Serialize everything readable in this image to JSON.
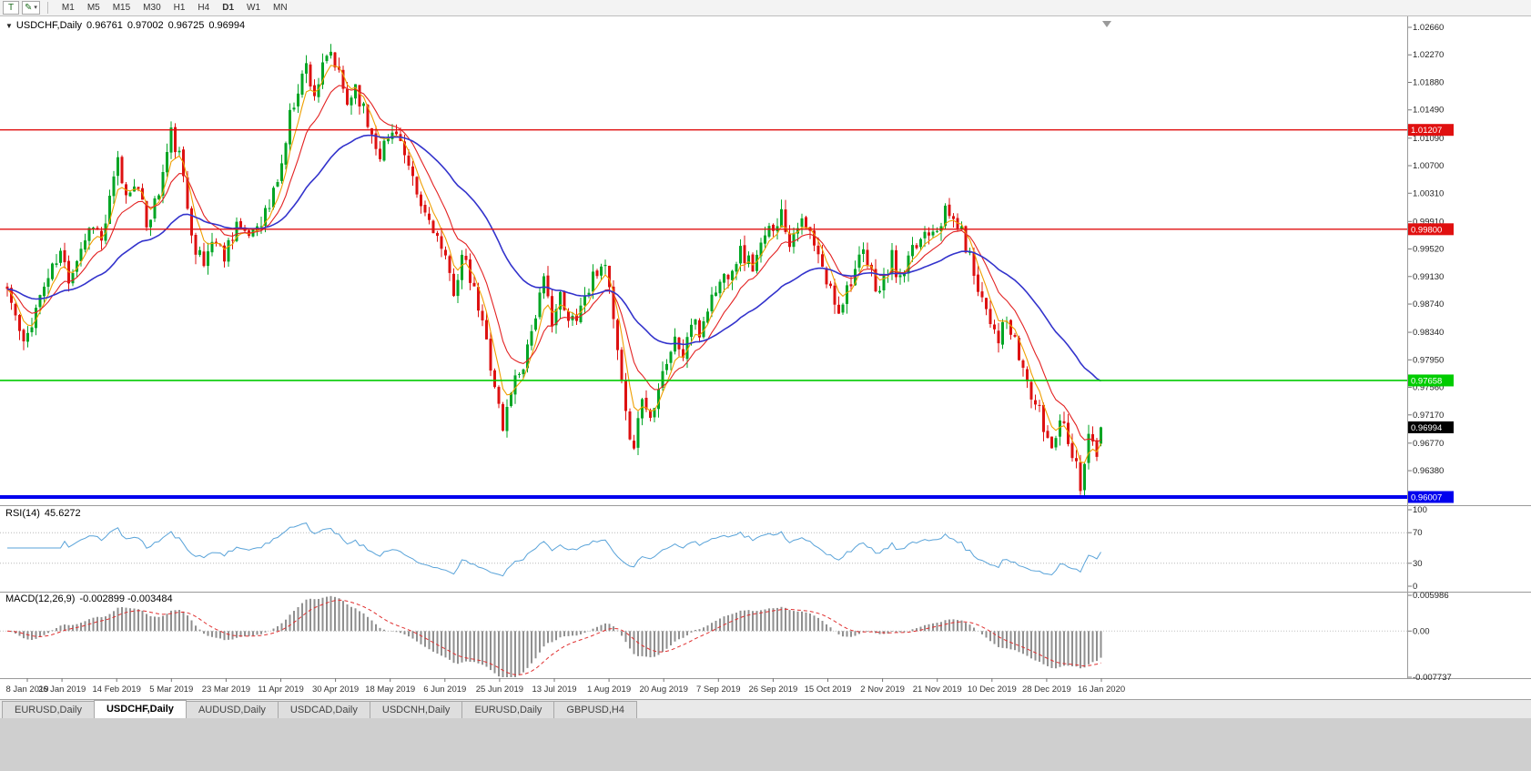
{
  "toolbar": {
    "tool_buttons": [
      {
        "label": "T"
      },
      {
        "label": "✎",
        "caret": "▾"
      }
    ],
    "timeframes": [
      "M1",
      "M5",
      "M15",
      "M30",
      "H1",
      "H4",
      "D1",
      "W1",
      "MN"
    ],
    "active_timeframe": "D1"
  },
  "chart_header": {
    "collapse_icon": "▼",
    "symbol": "USDCHF,Daily",
    "open": "0.96761",
    "high": "0.97002",
    "low": "0.96725",
    "close": "0.96994"
  },
  "indicator_labels": {
    "rsi_name": "RSI(14)",
    "rsi_value": "45.6272",
    "macd_name": "MACD(12,26,9)",
    "macd_values": "-0.002899 -0.003484"
  },
  "chart_data": {
    "type": "candlestick",
    "symbol": "USDCHF",
    "timeframe": "Daily",
    "bars": 268,
    "noise": 0.0013,
    "wick": 0.0014,
    "seed": 11,
    "price_range": {
      "top": 1.0266,
      "bottom": 0.96007
    },
    "last_bar": {
      "open": 0.96761,
      "high": 0.97002,
      "low": 0.96725,
      "close": 0.96994
    },
    "close_anchors": [
      [
        0,
        0.9895
      ],
      [
        2,
        0.9855
      ],
      [
        4,
        0.9812
      ],
      [
        6,
        0.9852
      ],
      [
        9,
        0.99
      ],
      [
        13,
        0.9945
      ],
      [
        15,
        0.9912
      ],
      [
        18,
        0.9955
      ],
      [
        21,
        0.9992
      ],
      [
        23,
        0.9962
      ],
      [
        27,
        1.0075
      ],
      [
        29,
        1.0025
      ],
      [
        31,
        1.0052
      ],
      [
        34,
        0.9988
      ],
      [
        37,
        1.0032
      ],
      [
        40,
        1.0115
      ],
      [
        42,
        1.0082
      ],
      [
        44,
        1.0012
      ],
      [
        46,
        0.9955
      ],
      [
        48,
        0.9928
      ],
      [
        50,
        0.9968
      ],
      [
        53,
        0.9945
      ],
      [
        56,
        0.9992
      ],
      [
        58,
        0.9965
      ],
      [
        61,
        0.9988
      ],
      [
        64,
        1.0012
      ],
      [
        67,
        1.0072
      ],
      [
        69,
        1.014
      ],
      [
        71,
        1.0182
      ],
      [
        73,
        1.0212
      ],
      [
        75,
        1.0172
      ],
      [
        77,
        1.0205
      ],
      [
        79,
        1.0228
      ],
      [
        81,
        1.0195
      ],
      [
        83,
        1.0158
      ],
      [
        85,
        1.0185
      ],
      [
        88,
        1.013
      ],
      [
        91,
        1.009
      ],
      [
        93,
        1.0108
      ],
      [
        95,
        1.0125
      ],
      [
        98,
        1.006
      ],
      [
        101,
        1.001
      ],
      [
        104,
        0.9985
      ],
      [
        107,
        0.993
      ],
      [
        109,
        0.9895
      ],
      [
        111,
        0.994
      ],
      [
        113,
        0.9908
      ],
      [
        115,
        0.9868
      ],
      [
        117,
        0.982
      ],
      [
        119,
        0.9762
      ],
      [
        121,
        0.9695
      ],
      [
        123,
        0.9755
      ],
      [
        126,
        0.9792
      ],
      [
        129,
        0.9862
      ],
      [
        131,
        0.9902
      ],
      [
        133,
        0.9855
      ],
      [
        135,
        0.9882
      ],
      [
        137,
        0.9845
      ],
      [
        140,
        0.9872
      ],
      [
        143,
        0.9912
      ],
      [
        145,
        0.9938
      ],
      [
        147,
        0.9895
      ],
      [
        149,
        0.98
      ],
      [
        151,
        0.971
      ],
      [
        153,
        0.9678
      ],
      [
        155,
        0.9742
      ],
      [
        157,
        0.9712
      ],
      [
        159,
        0.9765
      ],
      [
        161,
        0.9795
      ],
      [
        163,
        0.9822
      ],
      [
        165,
        0.9802
      ],
      [
        167,
        0.9848
      ],
      [
        169,
        0.9832
      ],
      [
        171,
        0.987
      ],
      [
        173,
        0.9895
      ],
      [
        176,
        0.9922
      ],
      [
        179,
        0.9948
      ],
      [
        182,
        0.9928
      ],
      [
        185,
        0.9965
      ],
      [
        187,
        0.9988
      ],
      [
        189,
        1.0002
      ],
      [
        191,
        0.9965
      ],
      [
        193,
        0.9992
      ],
      [
        196,
        0.9972
      ],
      [
        198,
        0.9938
      ],
      [
        200,
        0.9905
      ],
      [
        203,
        0.9868
      ],
      [
        206,
        0.9912
      ],
      [
        209,
        0.9942
      ],
      [
        211,
        0.9915
      ],
      [
        213,
        0.9892
      ],
      [
        216,
        0.9938
      ],
      [
        218,
        0.9905
      ],
      [
        221,
        0.9945
      ],
      [
        224,
        0.9978
      ],
      [
        227,
        0.9988
      ],
      [
        229,
        1.0002
      ],
      [
        232,
        0.9988
      ],
      [
        234,
        0.9958
      ],
      [
        236,
        0.992
      ],
      [
        238,
        0.9885
      ],
      [
        240,
        0.9855
      ],
      [
        242,
        0.9828
      ],
      [
        244,
        0.9848
      ],
      [
        246,
        0.9815
      ],
      [
        248,
        0.9782
      ],
      [
        250,
        0.9745
      ],
      [
        252,
        0.9718
      ],
      [
        253,
        0.9698
      ],
      [
        255,
        0.9672
      ],
      [
        257,
        0.9716
      ],
      [
        259,
        0.9688
      ],
      [
        261,
        0.9645
      ],
      [
        262,
        0.9618
      ],
      [
        263,
        0.9655
      ],
      [
        264,
        0.9692
      ],
      [
        265,
        0.9672
      ],
      [
        266,
        0.9655
      ],
      [
        267,
        0.9699
      ]
    ],
    "price_axis_ticks": [
      "1.02660",
      "1.02270",
      "1.01880",
      "1.01490",
      "1.01090",
      "1.00700",
      "1.00310",
      "0.99910",
      "0.99520",
      "0.99130",
      "0.98740",
      "0.98340",
      "0.97950",
      "0.97560",
      "0.97170",
      "0.96770",
      "0.96380"
    ],
    "date_labels": [
      "8 Jan 2019",
      "26 Jan 2019",
      "14 Feb 2019",
      "5 Mar 2019",
      "23 Mar 2019",
      "11 Apr 2019",
      "30 Apr 2019",
      "18 May 2019",
      "6 Jun 2019",
      "25 Jun 2019",
      "13 Jul 2019",
      "1 Aug 2019",
      "20 Aug 2019",
      "7 Sep 2019",
      "26 Sep 2019",
      "15 Oct 2019",
      "2 Nov 2019",
      "21 Nov 2019",
      "10 Dec 2019",
      "28 Dec 2019",
      "16 Jan 2020"
    ],
    "levels": [
      {
        "price": 1.01207,
        "label": "1.01207",
        "color": "#e01010",
        "width": 1.3
      },
      {
        "price": 0.998,
        "label": "0.99800",
        "color": "#e01010",
        "width": 1.3
      },
      {
        "price": 0.97658,
        "label": "0.97658",
        "color": "#00cc00",
        "width": 1.6
      },
      {
        "price": 0.96007,
        "label": "0.96007",
        "color": "#0000ee",
        "width": 4
      }
    ],
    "current_price": {
      "price": 0.96994,
      "label": "0.96994",
      "badge_color": "#000000"
    },
    "moving_averages": [
      {
        "period": 5,
        "color": "#ef9f00"
      },
      {
        "period": 12,
        "color": "#e32222"
      },
      {
        "period": 40,
        "color": "#3333cc"
      }
    ],
    "candle_colors": {
      "bull": "#00a524",
      "bear": "#dd1111"
    },
    "rsi": {
      "period": 14,
      "color": "#59a3d9",
      "levels": [
        100,
        70,
        30,
        0
      ],
      "level_labels": [
        "100",
        "70",
        "30",
        "0"
      ]
    },
    "macd": {
      "fast": 12,
      "slow": 26,
      "signal": 9,
      "hist_color": "#8f8f8f",
      "signal_color": "#e03030",
      "axis_labels": [
        "0.005986",
        "0.00",
        "-0.007737"
      ]
    }
  },
  "tabs": [
    {
      "label": "EURUSD,Daily",
      "active": false
    },
    {
      "label": "USDCHF,Daily",
      "active": true
    },
    {
      "label": "AUDUSD,Daily",
      "active": false
    },
    {
      "label": "USDCAD,Daily",
      "active": false
    },
    {
      "label": "USDCNH,Daily",
      "active": false
    },
    {
      "label": "EURUSD,Daily",
      "active": false
    },
    {
      "label": "GBPUSD,H4",
      "active": false
    }
  ]
}
